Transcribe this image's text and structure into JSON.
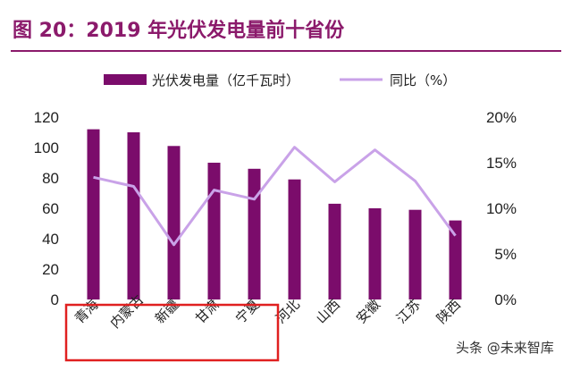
{
  "header": {
    "title": "图 20：2019 年光伏发电量前十省份"
  },
  "chart_data": {
    "type": "bar",
    "title": "图 20：2019 年光伏发电量前十省份",
    "categories": [
      "青海",
      "内蒙古",
      "新疆",
      "甘肃",
      "宁夏",
      "河北",
      "山西",
      "安徽",
      "江苏",
      "陕西"
    ],
    "series": [
      {
        "name": "光伏发电量（亿千瓦时）",
        "type": "bar",
        "axis": "left",
        "color": "#7B0C6B",
        "values": [
          112,
          110,
          101,
          90,
          86,
          79,
          63,
          60,
          59,
          52
        ]
      },
      {
        "name": "同比（%）",
        "type": "line",
        "axis": "right",
        "color": "#C9A2E8",
        "values": [
          13.4,
          12.4,
          6.0,
          12.0,
          11.0,
          16.7,
          12.9,
          16.4,
          13.0,
          7.0
        ]
      }
    ],
    "left_axis": {
      "ylim": [
        0,
        120
      ],
      "ticks": [
        "0",
        "20",
        "40",
        "60",
        "80",
        "100",
        "120"
      ]
    },
    "right_axis": {
      "ylim": [
        0,
        20
      ],
      "ticks": [
        "0%",
        "5%",
        "10%",
        "15%",
        "20%"
      ]
    },
    "highlight_box": {
      "categories": [
        "青海",
        "内蒙古",
        "新疆",
        "甘肃",
        "宁夏"
      ],
      "color": "#E02020"
    },
    "legend_position": "top",
    "grid": false
  },
  "watermark": {
    "text": "头条 @未来智库"
  }
}
